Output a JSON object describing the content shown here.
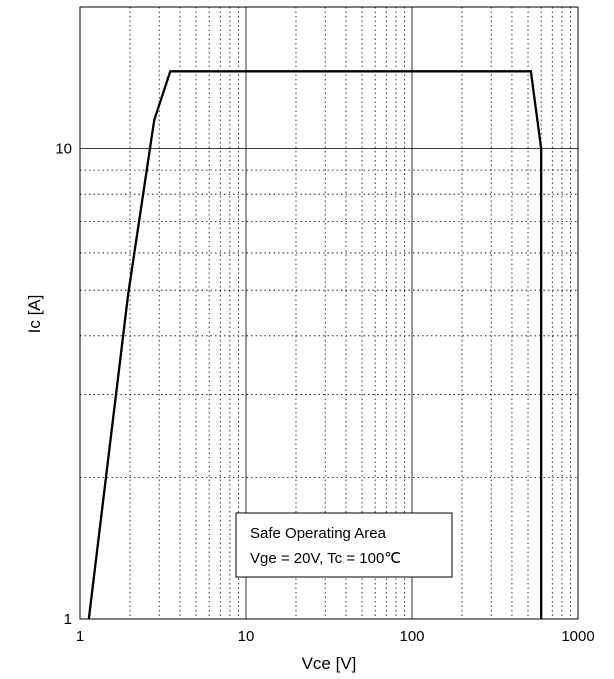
{
  "chart_data": {
    "type": "line",
    "title": "",
    "xlabel": "Vce [V]",
    "ylabel": "Ic [A]",
    "xscale": "log",
    "yscale": "log",
    "xlim": [
      1,
      1000
    ],
    "ylim": [
      1,
      20
    ],
    "grid": true,
    "x_ticks": [
      {
        "value": 1,
        "label": "1"
      },
      {
        "value": 10,
        "label": "10"
      },
      {
        "value": 100,
        "label": "100"
      },
      {
        "value": 1000,
        "label": "1000"
      }
    ],
    "y_ticks": [
      {
        "value": 1,
        "label": "1"
      },
      {
        "value": 10,
        "label": "10"
      }
    ],
    "series": [
      {
        "x": [
          1.13,
          1.95,
          2.8,
          3.5,
          520,
          600,
          600
        ],
        "y": [
          1.0,
          4.9,
          11.5,
          14.6,
          14.6,
          10.0,
          1.0
        ]
      }
    ],
    "annotation": {
      "lines": [
        "Safe Operating Area",
        "Vge = 20V, Tc = 100℃"
      ]
    }
  }
}
